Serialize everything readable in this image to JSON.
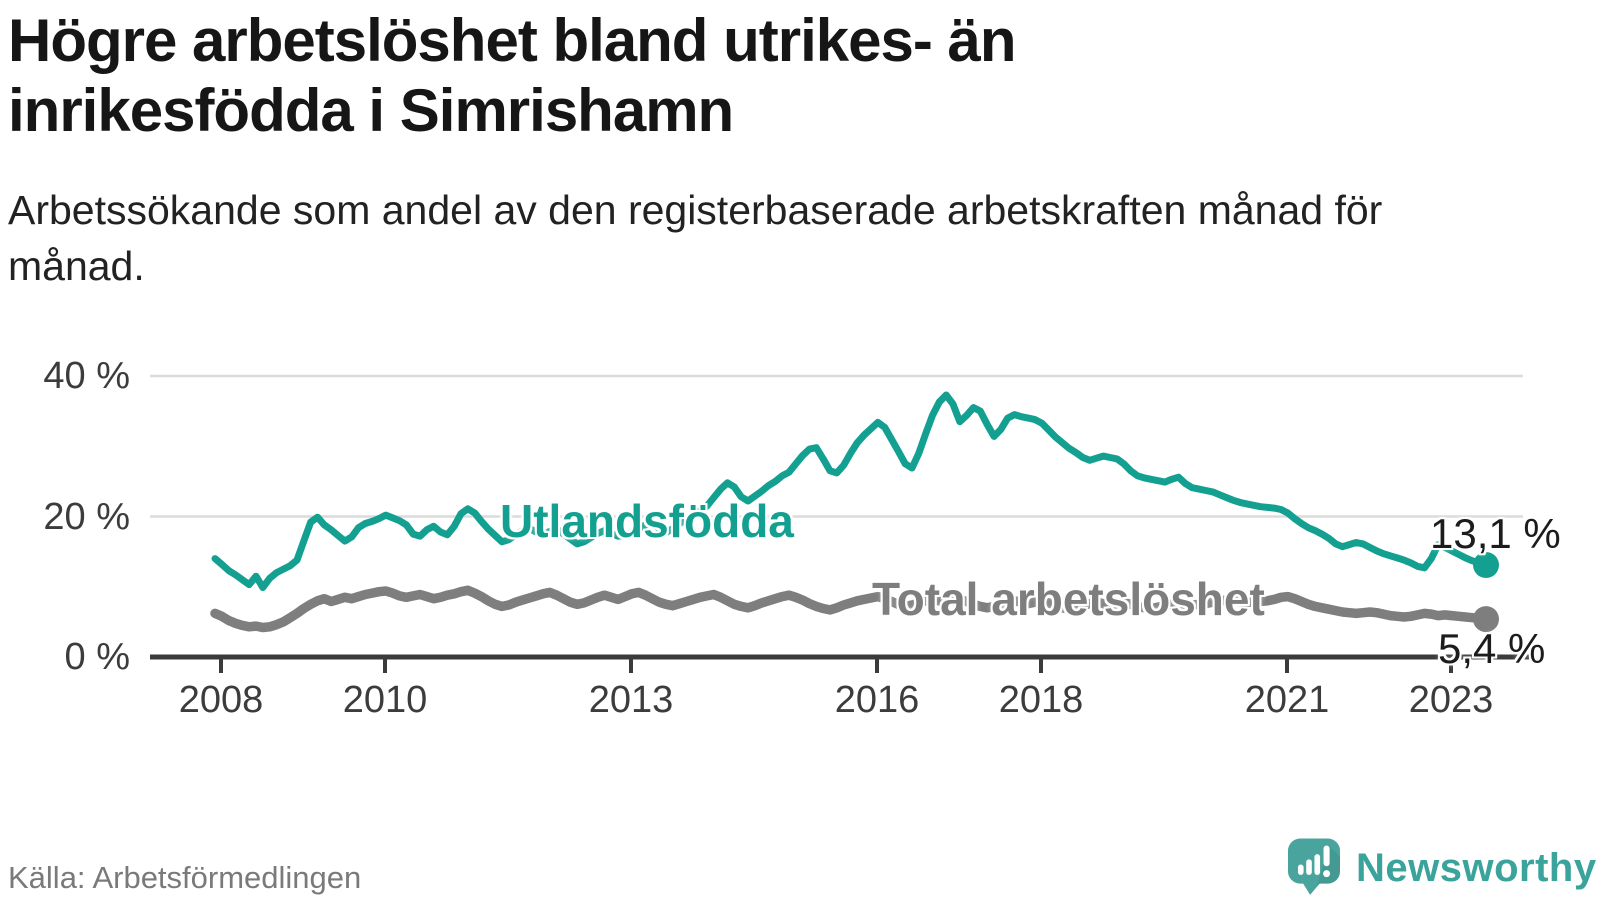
{
  "header": {
    "title": "Högre arbetslöshet bland utrikes- än inrikesfödda i Simrishamn",
    "subtitle": "Arbetssökande som andel av den registerbaserade arbetskraften månad för månad."
  },
  "footer": {
    "source": "Källa: Arbetsförmedlingen",
    "brand": "Newsworthy"
  },
  "colors": {
    "foreign_born_line": "#14a090",
    "total_line": "#7e7e7e",
    "axis": "#3b3b3b",
    "grid": "#dbdbdb",
    "title_text": "#161616",
    "muted_text": "#7a7a7a",
    "brand_teal": "#3aa39c"
  },
  "chart_data": {
    "type": "line",
    "x_unit": "month",
    "x_start_year": 2008,
    "x_end_label_month": "2023-07",
    "ylim": [
      0,
      44
    ],
    "grid": "horizontal",
    "x_ticks": [
      {
        "year": 2008,
        "label": "2008"
      },
      {
        "year": 2010,
        "label": "2010"
      },
      {
        "year": 2013,
        "label": "2013"
      },
      {
        "year": 2016,
        "label": "2016"
      },
      {
        "year": 2018,
        "label": "2018"
      },
      {
        "year": 2021,
        "label": "2021"
      },
      {
        "year": 2023,
        "label": "2023"
      }
    ],
    "y_ticks": [
      {
        "value": 0,
        "label": "0 %"
      },
      {
        "value": 20,
        "label": "20 %"
      },
      {
        "value": 40,
        "label": "40 %"
      }
    ],
    "series": [
      {
        "name": "Utlandsfödda",
        "color": "#14a090",
        "end_label": "13,1 %",
        "end_value": 13.1,
        "values": [
          14.0,
          13.2,
          12.3,
          11.7,
          11.0,
          10.3,
          11.5,
          9.9,
          11.2,
          12.0,
          12.5,
          13.0,
          13.8,
          16.5,
          19.2,
          19.9,
          18.8,
          18.1,
          17.3,
          16.5,
          17.1,
          18.4,
          19.0,
          19.3,
          19.7,
          20.2,
          19.8,
          19.4,
          18.8,
          17.5,
          17.2,
          18.1,
          18.6,
          17.8,
          17.4,
          18.6,
          20.4,
          21.1,
          20.5,
          19.3,
          18.2,
          17.3,
          16.4,
          16.7,
          17.4,
          18.0,
          18.3,
          17.8,
          17.4,
          17.9,
          18.2,
          17.5,
          16.8,
          16.1,
          16.4,
          17.0,
          17.6,
          18.0,
          17.6,
          17.2,
          17.3,
          17.7,
          18.3,
          18.8,
          19.0,
          18.3,
          17.7,
          18.3,
          19.0,
          19.7,
          20.2,
          20.8,
          21.5,
          22.7,
          23.9,
          24.8,
          24.2,
          22.8,
          22.2,
          22.9,
          23.6,
          24.4,
          25.0,
          25.8,
          26.3,
          27.5,
          28.7,
          29.6,
          29.8,
          28.2,
          26.5,
          26.2,
          27.3,
          29.0,
          30.5,
          31.6,
          32.5,
          33.4,
          32.7,
          31.0,
          29.3,
          27.5,
          26.9,
          29.0,
          31.8,
          34.4,
          36.3,
          37.3,
          36.0,
          33.5,
          34.4,
          35.5,
          35.0,
          33.1,
          31.4,
          32.4,
          34.0,
          34.5,
          34.2,
          34.0,
          33.8,
          33.3,
          32.3,
          31.3,
          30.5,
          29.7,
          29.1,
          28.4,
          28.0,
          28.3,
          28.6,
          28.4,
          28.2,
          27.5,
          26.5,
          25.8,
          25.5,
          25.3,
          25.1,
          24.9,
          25.3,
          25.6,
          24.7,
          24.1,
          23.9,
          23.7,
          23.5,
          23.1,
          22.7,
          22.3,
          22.0,
          21.8,
          21.6,
          21.4,
          21.3,
          21.2,
          21.0,
          20.5,
          19.7,
          19.0,
          18.4,
          18.0,
          17.5,
          16.9,
          16.1,
          15.7,
          16.0,
          16.3,
          16.1,
          15.6,
          15.1,
          14.7,
          14.4,
          14.1,
          13.8,
          13.4,
          12.9,
          12.7,
          14.0,
          16.0,
          15.6,
          15.1,
          14.6,
          14.1,
          13.7,
          13.4,
          13.1
        ]
      },
      {
        "name": "Total arbetslöshet",
        "color": "#7e7e7e",
        "end_label": "5,4 %",
        "end_value": 5.4,
        "values": [
          6.2,
          5.8,
          5.2,
          4.8,
          4.5,
          4.3,
          4.4,
          4.2,
          4.3,
          4.6,
          5.0,
          5.6,
          6.2,
          6.9,
          7.5,
          8.0,
          8.3,
          7.9,
          8.2,
          8.5,
          8.3,
          8.6,
          8.9,
          9.1,
          9.3,
          9.4,
          9.1,
          8.7,
          8.5,
          8.7,
          8.9,
          8.6,
          8.3,
          8.5,
          8.8,
          9.0,
          9.3,
          9.5,
          9.1,
          8.6,
          8.0,
          7.5,
          7.2,
          7.4,
          7.8,
          8.1,
          8.4,
          8.7,
          9.0,
          9.2,
          8.8,
          8.3,
          7.8,
          7.5,
          7.7,
          8.1,
          8.5,
          8.8,
          8.5,
          8.2,
          8.6,
          9.0,
          9.2,
          8.8,
          8.3,
          7.8,
          7.5,
          7.3,
          7.6,
          7.9,
          8.2,
          8.5,
          8.7,
          8.9,
          8.5,
          8.0,
          7.5,
          7.2,
          7.0,
          7.3,
          7.7,
          8.0,
          8.3,
          8.6,
          8.8,
          8.5,
          8.1,
          7.6,
          7.2,
          6.9,
          6.7,
          7.0,
          7.4,
          7.7,
          8.0,
          8.2,
          8.4,
          8.6,
          8.3,
          7.9,
          7.5,
          7.2,
          7.4,
          7.7,
          8.0,
          8.2,
          8.0,
          7.8,
          8.0,
          8.2,
          7.9,
          7.5,
          7.2,
          7.0,
          7.2,
          7.5,
          7.8,
          8.0,
          7.8,
          7.6,
          7.8,
          8.0,
          7.7,
          7.4,
          7.0,
          6.8,
          7.0,
          7.3,
          7.6,
          7.8,
          7.6,
          7.4,
          7.6,
          7.8,
          7.5,
          7.2,
          7.0,
          6.9,
          7.1,
          7.3,
          7.5,
          7.7,
          7.5,
          7.4,
          7.5,
          7.6,
          7.8,
          8.0,
          8.1,
          8.0,
          7.9,
          7.8,
          7.8,
          7.9,
          8.0,
          8.2,
          8.5,
          8.6,
          8.3,
          7.9,
          7.5,
          7.2,
          7.0,
          6.8,
          6.6,
          6.4,
          6.3,
          6.2,
          6.3,
          6.4,
          6.3,
          6.1,
          5.9,
          5.8,
          5.7,
          5.8,
          6.0,
          6.2,
          6.1,
          5.9,
          6.0,
          5.9,
          5.8,
          5.7,
          5.6,
          5.5,
          5.4
        ]
      }
    ]
  }
}
